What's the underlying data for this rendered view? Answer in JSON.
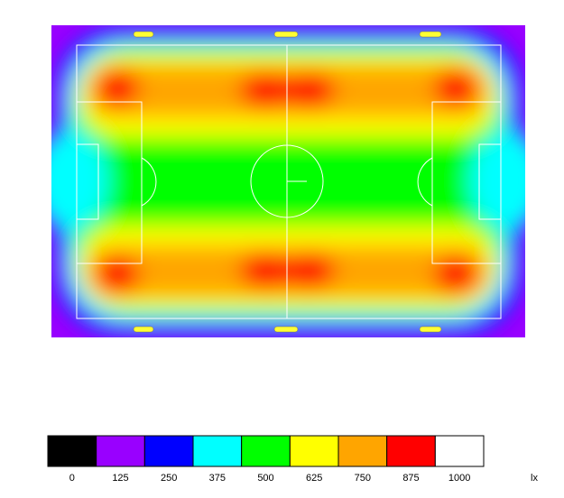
{
  "chart_data": {
    "type": "heatmap",
    "colorbar": {
      "colors": [
        "#000000",
        "#9900ff",
        "#0000ff",
        "#00ffff",
        "#00ff00",
        "#ffff00",
        "#ffa500",
        "#ff0000",
        "#ffffff"
      ],
      "ticks": [
        0,
        125,
        250,
        375,
        500,
        625,
        750,
        875,
        1000
      ],
      "unit": "lx"
    }
  }
}
